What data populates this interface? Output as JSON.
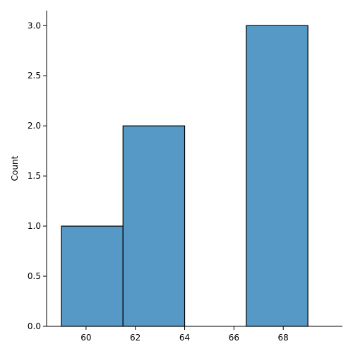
{
  "chart_data": {
    "type": "bar",
    "subtype": "histogram",
    "bins": [
      {
        "x0": 59.0,
        "x1": 61.5,
        "count": 1
      },
      {
        "x0": 61.5,
        "x1": 64.0,
        "count": 2
      },
      {
        "x0": 64.0,
        "x1": 66.5,
        "count": 0
      },
      {
        "x0": 66.5,
        "x1": 69.0,
        "count": 3
      }
    ],
    "xlabel": "",
    "ylabel": "Count",
    "xlim": [
      58.4,
      70.4
    ],
    "ylim": [
      0,
      3.15
    ],
    "xticks": [
      60,
      62,
      64,
      66,
      68
    ],
    "xtick_labels": [
      "60",
      "62",
      "64",
      "66",
      "68"
    ],
    "yticks": [
      0.0,
      0.5,
      1.0,
      1.5,
      2.0,
      2.5,
      3.0
    ],
    "ytick_labels": [
      "0.0",
      "0.5",
      "1.0",
      "1.5",
      "2.0",
      "2.5",
      "3.0"
    ],
    "grid": false,
    "legend": "none",
    "bar_color": "#5799c6",
    "edge_color": "#000000"
  }
}
